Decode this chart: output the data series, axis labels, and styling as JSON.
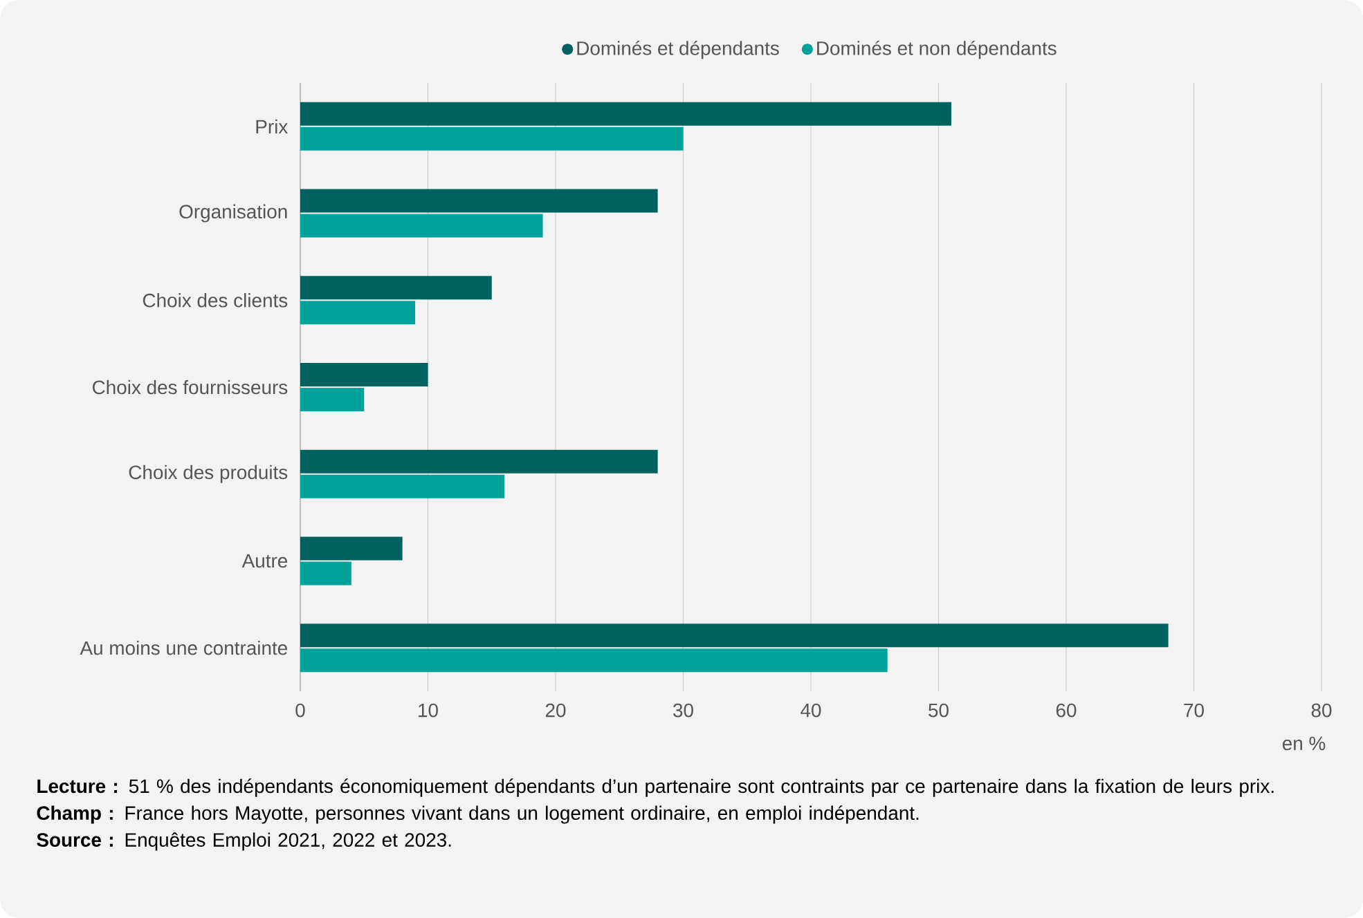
{
  "chart_data": {
    "type": "bar",
    "orientation": "horizontal",
    "categories": [
      "Prix",
      "Organisation",
      "Choix des clients",
      "Choix des fournisseurs",
      "Choix des produits",
      "Autre",
      "Au moins une contrainte"
    ],
    "series": [
      {
        "name": "Dominés et dépendants",
        "color": "#00625e",
        "values": [
          51,
          28,
          15,
          10,
          28,
          8,
          68
        ]
      },
      {
        "name": "Dominés et non dépendants",
        "color": "#00a19b",
        "values": [
          30,
          19,
          9,
          5,
          16,
          4,
          46
        ]
      }
    ],
    "xlim": [
      0,
      80
    ],
    "xticks": [
      0,
      10,
      20,
      30,
      40,
      50,
      60,
      70,
      80
    ],
    "xlabel": "en %",
    "grid": "x",
    "legend": "top",
    "annotations": [
      "**Lecture :** 51 % des indépendants économiquement dépendants d’un partenaire sont contraints par ce partenaire dans la fixation de leurs prix.",
      "**Champ :** France hors Mayotte, personnes vivant dans un logement ordinaire, en emploi indépendant.",
      "**Source :** Enquêtes Emploi 2021, 2022 et 2023."
    ]
  }
}
